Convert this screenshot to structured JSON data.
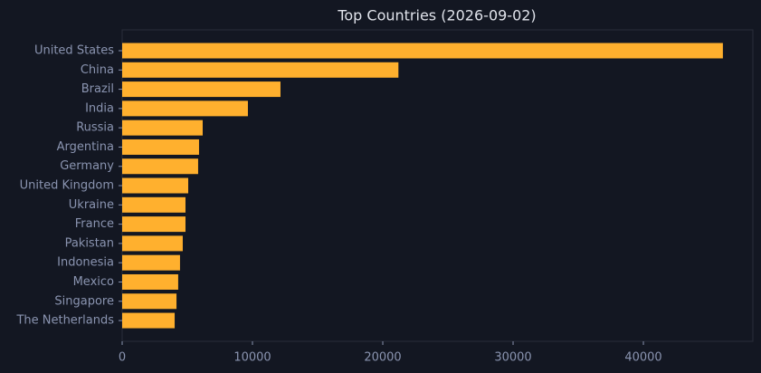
{
  "chart_data": {
    "type": "bar",
    "orientation": "horizontal",
    "title": "Top Countries (2026-09-02)",
    "categories": [
      "United States",
      "China",
      "Brazil",
      "India",
      "Russia",
      "Argentina",
      "Germany",
      "United Kingdom",
      "Ukraine",
      "France",
      "Pakistan",
      "Indonesia",
      "Mexico",
      "Singapore",
      "The Netherlands"
    ],
    "values": [
      46100,
      21200,
      12150,
      9650,
      6180,
      5900,
      5830,
      5070,
      4860,
      4860,
      4650,
      4440,
      4300,
      4170,
      4030
    ],
    "color": "#ffb02e",
    "xlim": [
      0,
      48400
    ],
    "xticks": [
      0,
      10000,
      20000,
      30000,
      40000
    ]
  }
}
